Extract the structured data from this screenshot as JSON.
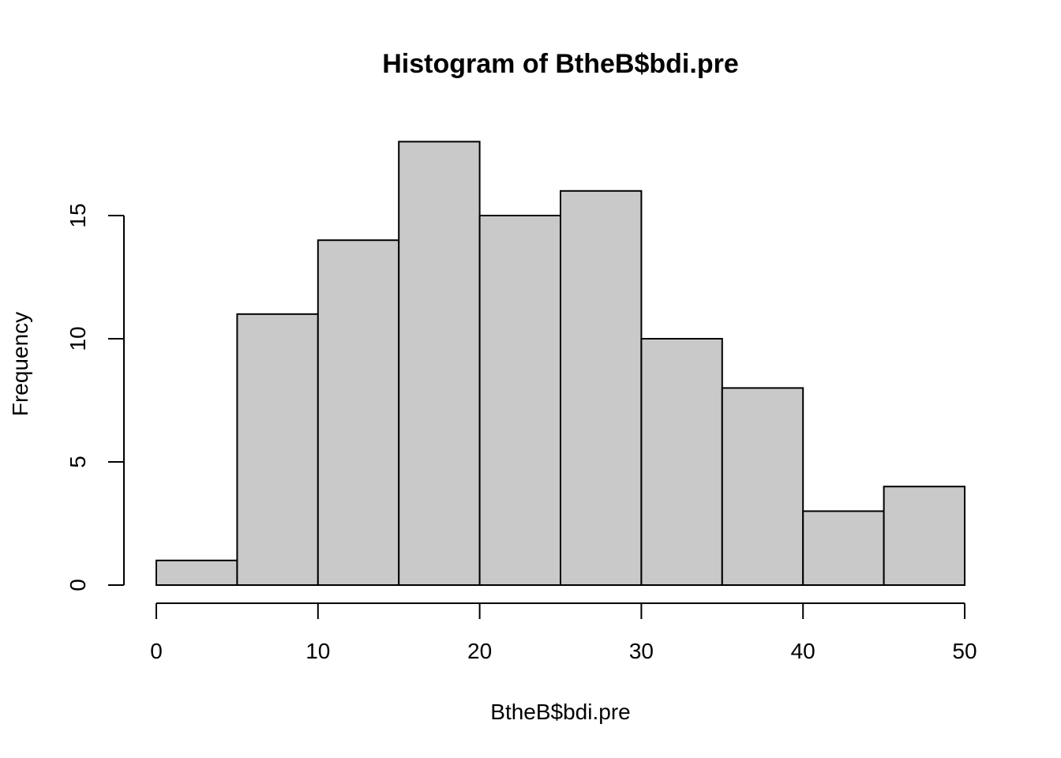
{
  "chart_data": {
    "type": "bar",
    "title": "Histogram of BtheB$bdi.pre",
    "xlabel": "BtheB$bdi.pre",
    "ylabel": "Frequency",
    "bins": [
      {
        "start": 0,
        "end": 5,
        "count": 1
      },
      {
        "start": 5,
        "end": 10,
        "count": 11
      },
      {
        "start": 10,
        "end": 15,
        "count": 14
      },
      {
        "start": 15,
        "end": 20,
        "count": 18
      },
      {
        "start": 20,
        "end": 25,
        "count": 15
      },
      {
        "start": 25,
        "end": 30,
        "count": 16
      },
      {
        "start": 30,
        "end": 35,
        "count": 10
      },
      {
        "start": 35,
        "end": 40,
        "count": 8
      },
      {
        "start": 40,
        "end": 45,
        "count": 3
      },
      {
        "start": 45,
        "end": 50,
        "count": 4
      }
    ],
    "xlim": [
      0,
      50
    ],
    "ylim": [
      0,
      18
    ],
    "x_ticks": [
      0,
      10,
      20,
      30,
      40,
      50
    ],
    "y_ticks": [
      0,
      5,
      10,
      15
    ],
    "bar_color": "#c9c9c9",
    "border_color": "#000000",
    "grid": false,
    "legend": "none"
  }
}
